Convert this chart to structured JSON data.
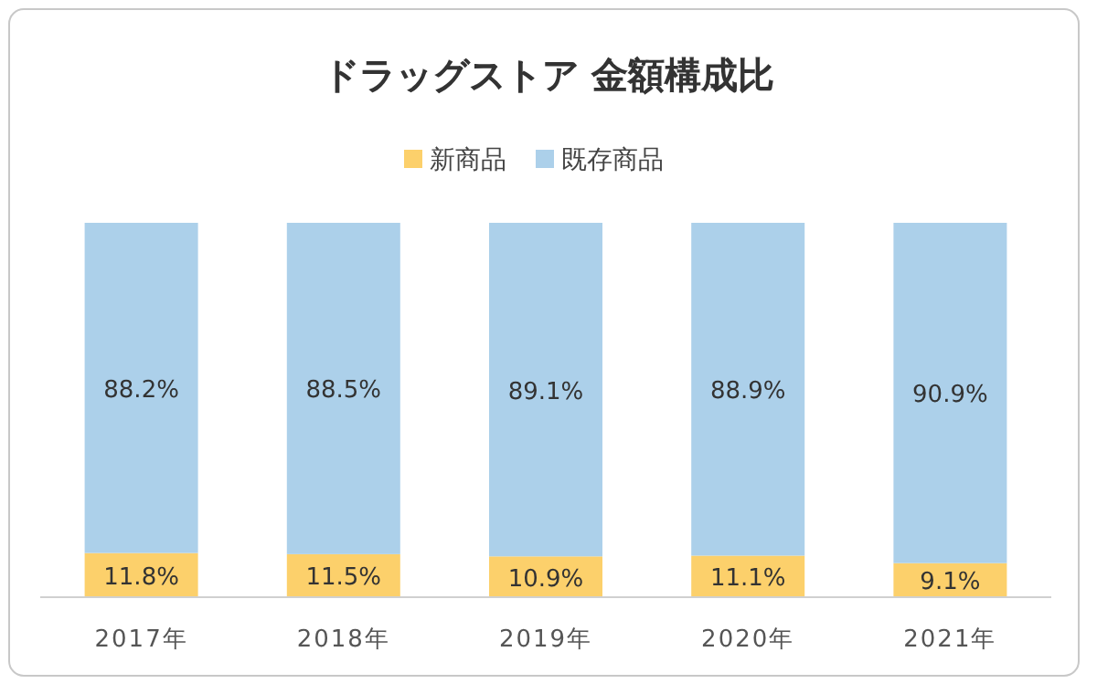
{
  "chart_data": {
    "type": "bar",
    "title": "ドラッグストア 金額構成比",
    "categories": [
      "2017年",
      "2018年",
      "2019年",
      "2020年",
      "2021年"
    ],
    "stacked": true,
    "ylim": [
      0,
      100
    ],
    "legend": "top",
    "series": [
      {
        "name": "新商品",
        "color": "#fcd06b",
        "values": [
          11.8,
          11.5,
          10.9,
          11.1,
          9.1
        ],
        "value_labels": [
          "11.8%",
          "11.5%",
          "10.9%",
          "11.1%",
          "9.1%"
        ]
      },
      {
        "name": "既存商品",
        "color": "#acd0ea",
        "values": [
          88.2,
          88.5,
          89.1,
          88.9,
          90.9
        ],
        "value_labels": [
          "88.2%",
          "88.5%",
          "89.1%",
          "88.9%",
          "90.9%"
        ]
      }
    ]
  }
}
